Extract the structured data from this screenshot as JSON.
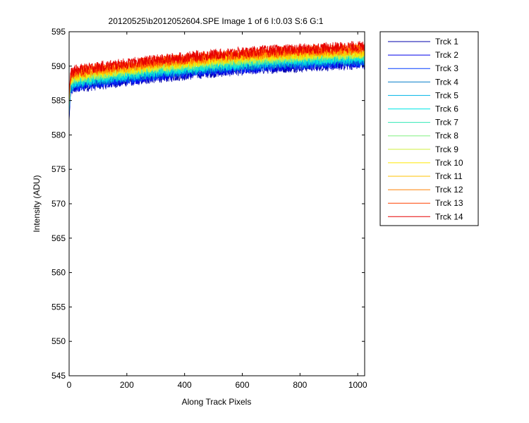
{
  "chart_data": {
    "type": "line",
    "title": "20120525\\b2012052604.SPE  Image 1 of 6  I:0.03  S:6  G:1",
    "xlabel": "Along Track Pixels",
    "ylabel": "Intensity (ADU)",
    "xlim": [
      0,
      1024
    ],
    "ylim": [
      545,
      595
    ],
    "xticks": [
      0,
      200,
      400,
      600,
      800,
      1000
    ],
    "yticks": [
      545,
      550,
      555,
      560,
      565,
      570,
      575,
      580,
      585,
      590,
      595
    ],
    "grid": false,
    "legend_position": "outside-right",
    "series": [
      {
        "name": "Trck 1",
        "color": "#0000ab",
        "x": [
          0,
          5,
          20,
          100,
          200,
          300,
          400,
          500,
          600,
          700,
          800,
          900,
          1024
        ],
        "y": [
          582.0,
          586.3,
          586.8,
          587.3,
          587.8,
          588.3,
          588.7,
          589.1,
          589.4,
          589.7,
          589.9,
          590.1,
          590.3
        ]
      },
      {
        "name": "Trck 2",
        "color": "#0000ea",
        "x": [
          0,
          5,
          20,
          100,
          200,
          300,
          400,
          500,
          600,
          700,
          800,
          900,
          1024
        ],
        "y": [
          582.3,
          586.5,
          587.0,
          587.5,
          588.0,
          588.5,
          588.9,
          589.3,
          589.6,
          589.9,
          590.1,
          590.3,
          590.5
        ]
      },
      {
        "name": "Trck 3",
        "color": "#003cff",
        "x": [
          0,
          5,
          20,
          100,
          200,
          300,
          400,
          500,
          600,
          700,
          800,
          900,
          1024
        ],
        "y": [
          582.6,
          586.7,
          587.2,
          587.7,
          588.2,
          588.7,
          589.1,
          589.5,
          589.8,
          590.1,
          590.3,
          590.5,
          590.7
        ]
      },
      {
        "name": "Trck 4",
        "color": "#007cc8",
        "x": [
          0,
          5,
          20,
          100,
          200,
          300,
          400,
          500,
          600,
          700,
          800,
          900,
          1024
        ],
        "y": [
          582.9,
          586.9,
          587.4,
          587.9,
          588.4,
          588.9,
          589.3,
          589.7,
          590.0,
          590.3,
          590.5,
          590.7,
          590.9
        ]
      },
      {
        "name": "Trck 5",
        "color": "#00b4e6",
        "x": [
          0,
          5,
          20,
          100,
          200,
          300,
          400,
          500,
          600,
          700,
          800,
          900,
          1024
        ],
        "y": [
          583.2,
          587.1,
          587.6,
          588.1,
          588.6,
          589.1,
          589.5,
          589.9,
          590.2,
          590.5,
          590.7,
          590.9,
          591.1
        ]
      },
      {
        "name": "Trck 6",
        "color": "#00e6e6",
        "x": [
          0,
          5,
          20,
          100,
          200,
          300,
          400,
          500,
          600,
          700,
          800,
          900,
          1024
        ],
        "y": [
          583.5,
          587.3,
          587.8,
          588.3,
          588.8,
          589.3,
          589.7,
          590.1,
          590.4,
          590.7,
          590.9,
          591.1,
          591.3
        ]
      },
      {
        "name": "Trck 7",
        "color": "#30e8b4",
        "x": [
          0,
          5,
          20,
          100,
          200,
          300,
          400,
          500,
          600,
          700,
          800,
          900,
          1024
        ],
        "y": [
          583.8,
          587.5,
          588.0,
          588.5,
          589.0,
          589.5,
          589.9,
          590.3,
          590.6,
          590.9,
          591.1,
          591.3,
          591.5
        ]
      },
      {
        "name": "Trck 8",
        "color": "#80f080",
        "x": [
          0,
          5,
          20,
          100,
          200,
          300,
          400,
          500,
          600,
          700,
          800,
          900,
          1024
        ],
        "y": [
          584.1,
          587.7,
          588.2,
          588.7,
          589.2,
          589.7,
          590.1,
          590.5,
          590.8,
          591.1,
          591.3,
          591.5,
          591.7
        ]
      },
      {
        "name": "Trck 9",
        "color": "#d0f040",
        "x": [
          0,
          5,
          20,
          100,
          200,
          300,
          400,
          500,
          600,
          700,
          800,
          900,
          1024
        ],
        "y": [
          584.4,
          587.9,
          588.4,
          588.9,
          589.4,
          589.9,
          590.3,
          590.7,
          591.0,
          591.3,
          591.5,
          591.7,
          591.9
        ]
      },
      {
        "name": "Trck 10",
        "color": "#ffe800",
        "x": [
          0,
          5,
          20,
          100,
          200,
          300,
          400,
          500,
          600,
          700,
          800,
          900,
          1024
        ],
        "y": [
          584.7,
          588.1,
          588.6,
          589.1,
          589.6,
          590.1,
          590.5,
          590.9,
          591.2,
          591.5,
          591.7,
          591.9,
          592.1
        ]
      },
      {
        "name": "Trck 11",
        "color": "#ffc000",
        "x": [
          0,
          5,
          20,
          100,
          200,
          300,
          400,
          500,
          600,
          700,
          800,
          900,
          1024
        ],
        "y": [
          585.0,
          588.3,
          588.8,
          589.3,
          589.8,
          590.3,
          590.7,
          591.1,
          591.4,
          591.7,
          591.9,
          592.1,
          592.3
        ]
      },
      {
        "name": "Trck 12",
        "color": "#ff8000",
        "x": [
          0,
          5,
          20,
          100,
          200,
          300,
          400,
          500,
          600,
          700,
          800,
          900,
          1024
        ],
        "y": [
          585.3,
          588.5,
          589.0,
          589.5,
          590.0,
          590.5,
          590.9,
          591.3,
          591.6,
          591.9,
          592.1,
          592.3,
          592.5
        ]
      },
      {
        "name": "Trck 13",
        "color": "#ff4000",
        "x": [
          0,
          5,
          20,
          100,
          200,
          300,
          400,
          500,
          600,
          700,
          800,
          900,
          1024
        ],
        "y": [
          585.6,
          588.7,
          589.2,
          589.7,
          590.2,
          590.7,
          591.1,
          591.5,
          591.8,
          592.1,
          592.3,
          592.5,
          592.7
        ]
      },
      {
        "name": "Trck 14",
        "color": "#e60000",
        "x": [
          0,
          5,
          20,
          100,
          200,
          300,
          400,
          500,
          600,
          700,
          800,
          900,
          1024
        ],
        "y": [
          585.9,
          588.9,
          589.4,
          589.9,
          590.4,
          590.9,
          591.3,
          591.7,
          592.0,
          592.3,
          592.5,
          592.7,
          592.9
        ]
      }
    ]
  }
}
